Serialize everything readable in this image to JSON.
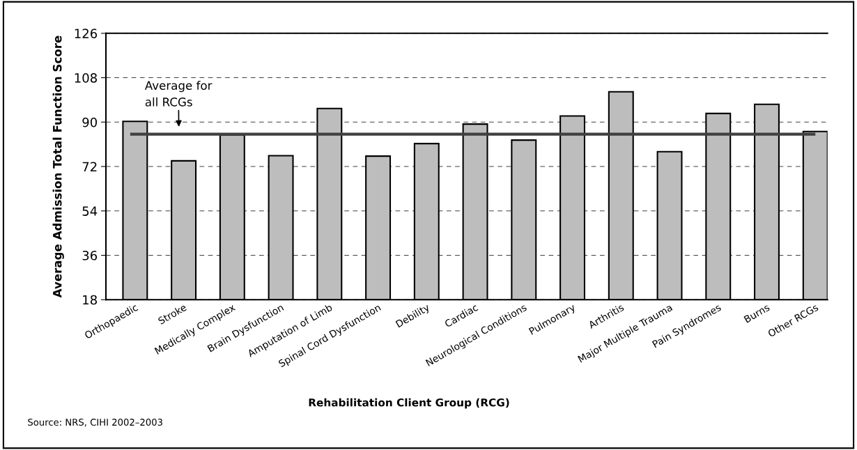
{
  "chart_data": {
    "type": "bar",
    "xlabel": "Rehabilitation Client Group (RCG)",
    "ylabel": "Average Admission Total Function Score",
    "categories": [
      "Orthopaedic",
      "Stroke",
      "Medically Complex",
      "Brain Dysfunction",
      "Amputation of Limb",
      "Spinal Cord Dysfunction",
      "Debility",
      "Cardiac",
      "Neurological Conditions",
      "Pulmonary",
      "Arthritis",
      "Major Multiple Trauma",
      "Pain Syndromes",
      "Burns",
      "Other RCGs"
    ],
    "values": [
      90.3,
      74.3,
      84.8,
      76.4,
      95.5,
      76.2,
      81.3,
      89.2,
      82.7,
      92.5,
      102.3,
      78.0,
      93.5,
      97.2,
      86.2
    ],
    "color": "#bdbdbd",
    "ylim": [
      18,
      126
    ],
    "yticks": [
      18,
      36,
      54,
      72,
      90,
      108,
      126
    ],
    "grid": "y",
    "ref_lines": [
      {
        "axis": "y",
        "value": 85.1,
        "label": "Average for\nall RCGs",
        "color": "#404040"
      }
    ],
    "annotations": [
      "Source: NRS, CIHI 2002–2003"
    ]
  }
}
